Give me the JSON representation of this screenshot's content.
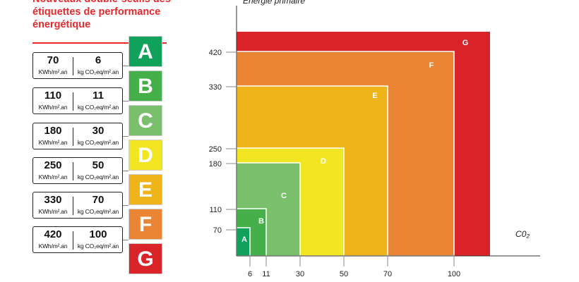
{
  "title": "Nouveaux double-seuils des étiquettes de performance énergétique",
  "axes": {
    "y_title": "Énergie primaire",
    "x_title": "C0₂",
    "y_ticks": [
      "70",
      "110",
      "180",
      "250",
      "330",
      "420"
    ],
    "x_ticks": [
      "6",
      "11",
      "30",
      "50",
      "70",
      "100"
    ]
  },
  "thresholds": [
    {
      "energy": "70",
      "co2": "6"
    },
    {
      "energy": "110",
      "co2": "11"
    },
    {
      "energy": "180",
      "co2": "30"
    },
    {
      "energy": "250",
      "co2": "50"
    },
    {
      "energy": "330",
      "co2": "70"
    },
    {
      "energy": "420",
      "co2": "100"
    }
  ],
  "units": {
    "energy": "KWh/m².an",
    "co2": "kg CO₂eq/m².an"
  },
  "classes": [
    {
      "label": "A",
      "color": "#10a15b"
    },
    {
      "label": "B",
      "color": "#45b04a"
    },
    {
      "label": "C",
      "color": "#7ac06c"
    },
    {
      "label": "D",
      "color": "#f2e622"
    },
    {
      "label": "E",
      "color": "#efb419"
    },
    {
      "label": "F",
      "color": "#ea8535"
    },
    {
      "label": "G",
      "color": "#d9242a"
    }
  ]
}
